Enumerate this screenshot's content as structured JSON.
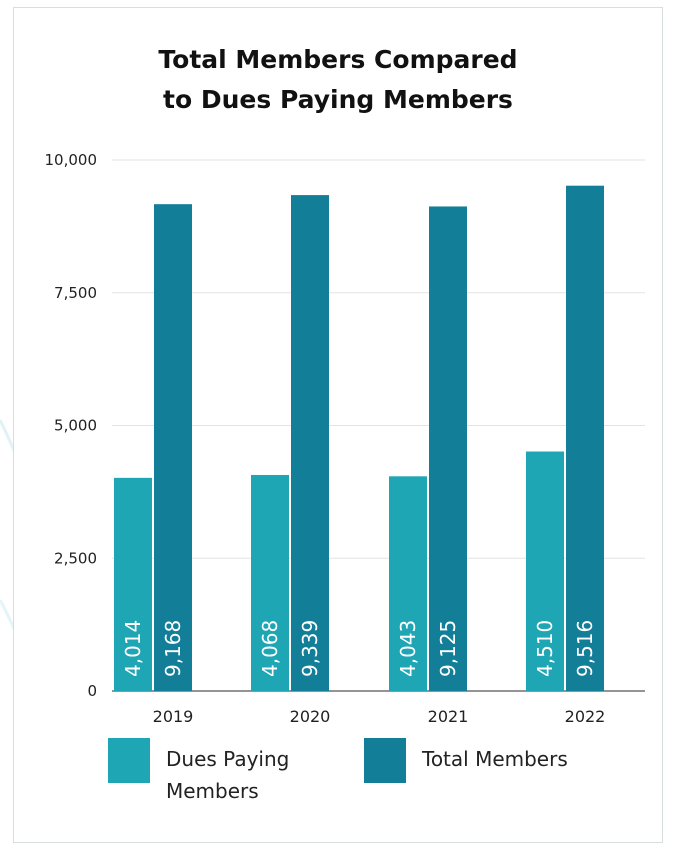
{
  "chart_data": {
    "type": "bar",
    "title": "Total Members Compared to Dues Paying Members",
    "title_lines": [
      "Total Members Compared",
      "to Dues Paying Members"
    ],
    "categories": [
      "2019",
      "2020",
      "2021",
      "2022"
    ],
    "series": [
      {
        "name": "Dues Paying Members",
        "legend_lines": [
          "Dues Paying",
          "Members"
        ],
        "color": "#1fa6b5",
        "values": [
          4014,
          4068,
          4043,
          4510
        ],
        "labels": [
          "4,014",
          "4,068",
          "4,043",
          "4,510"
        ]
      },
      {
        "name": "Total Members",
        "legend_lines": [
          "Total Members"
        ],
        "color": "#127e98",
        "values": [
          9168,
          9339,
          9125,
          9516
        ],
        "labels": [
          "9,168",
          "9,339",
          "9,125",
          "9,516"
        ]
      }
    ],
    "ylim": [
      0,
      10000
    ],
    "yticks": [
      0,
      2500,
      5000,
      7500,
      10000
    ],
    "ytick_labels": [
      "0",
      "2,500",
      "5,000",
      "7,500",
      "10,000"
    ],
    "grid": true,
    "legend_position": "bottom"
  }
}
